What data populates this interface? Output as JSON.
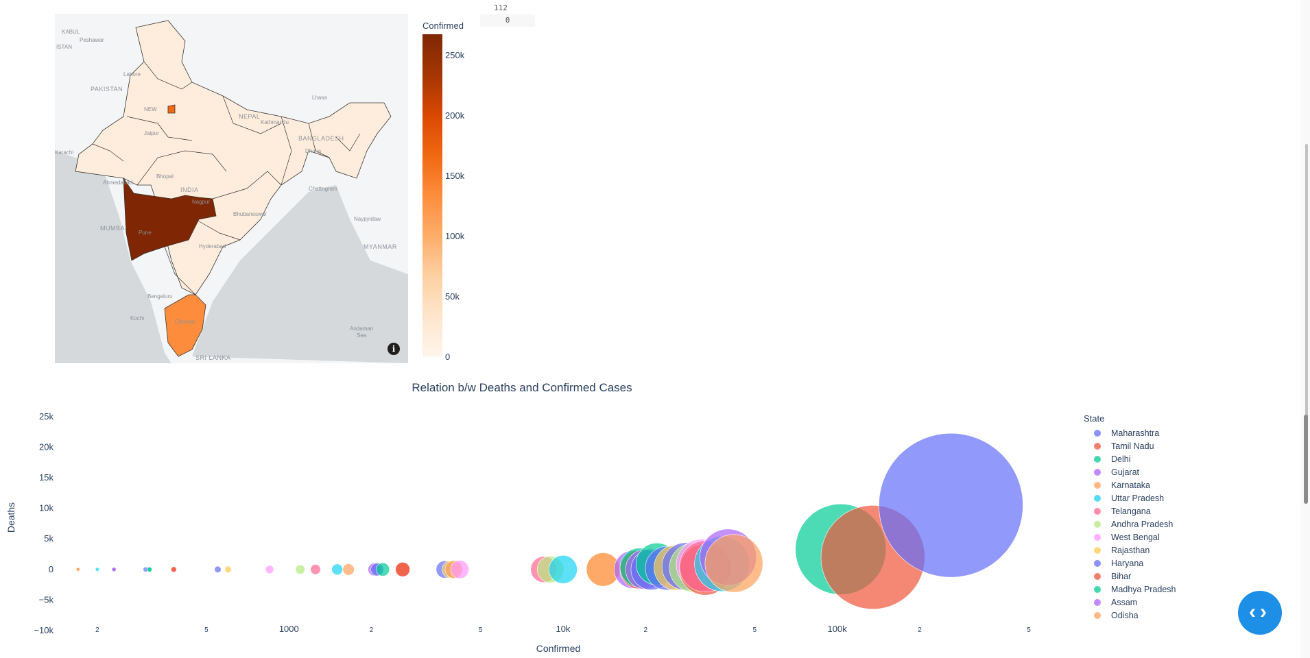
{
  "slider": {
    "top_value": "112",
    "box_value": "0"
  },
  "map": {
    "labels": [
      {
        "text": "KABUL"
      },
      {
        "text": "Peshawar"
      },
      {
        "text": "ISTAN"
      },
      {
        "text": "PAKISTAN"
      },
      {
        "text": "Lahore"
      },
      {
        "text": "NEW"
      },
      {
        "text": "Jaipur"
      },
      {
        "text": "NEPAL"
      },
      {
        "text": "Lhasa"
      },
      {
        "text": "Kathmandu"
      },
      {
        "text": "Ahmedabad"
      },
      {
        "text": "Bhopal"
      },
      {
        "text": "INDIA"
      },
      {
        "text": "Nagpur"
      },
      {
        "text": "MUMBAI"
      },
      {
        "text": "Pune"
      },
      {
        "text": "BANGLADESH"
      },
      {
        "text": "Dhaka"
      },
      {
        "text": "Chattogram"
      },
      {
        "text": "Bhubaneswar"
      },
      {
        "text": "Naypyidaw"
      },
      {
        "text": "MYANMAR"
      },
      {
        "text": "Bengaluru"
      },
      {
        "text": "Kochi"
      },
      {
        "text": "Chennai"
      },
      {
        "text": "Andaman"
      },
      {
        "text": "Sea"
      },
      {
        "text": "SRI LANKA"
      },
      {
        "text": "Hyderabad"
      },
      {
        "text": "Karachi"
      }
    ],
    "info_icon": "i",
    "colorbar": {
      "title": "Confirmed",
      "ticks": [
        "250k",
        "200k",
        "150k",
        "100k",
        "50k",
        "0"
      ],
      "colorscale": [
        "#fff5eb",
        "#fee6ce",
        "#fdd0a2",
        "#fdae6b",
        "#fd8d3c",
        "#f16913",
        "#d94801",
        "#a63603",
        "#7f2704"
      ]
    },
    "state_colors": {
      "maharashtra": "#7f2704",
      "tamil_nadu": "#fd8d3c",
      "delhi": "#f16913",
      "other": "#feeddc"
    }
  },
  "chart": {
    "title": "Relation b/w Deaths and Confirmed Cases",
    "xlabel": "Confirmed",
    "ylabel": "Deaths",
    "x_ticks": [
      "2",
      "5",
      "1000",
      "2",
      "5",
      "10k",
      "2",
      "5",
      "100k",
      "2",
      "5"
    ],
    "y_ticks": [
      "25k",
      "20k",
      "15k",
      "10k",
      "5k",
      "0",
      "−5k",
      "−10k"
    ],
    "legend_title": "State"
  },
  "chart_data": {
    "type": "scatter",
    "title": "Relation b/w Deaths and Confirmed Cases",
    "xlabel": "Confirmed",
    "ylabel": "Deaths",
    "x_scale": "log",
    "xlim": [
      140,
      500000
    ],
    "ylim": [
      -10000,
      27000
    ],
    "size_encodes": "Confirmed",
    "series": [
      {
        "name": "Maharashtra",
        "color": "#636efa",
        "points": [
          {
            "x": 260000,
            "y": 10500
          },
          {
            "x": 300,
            "y": 0
          },
          {
            "x": 3700,
            "y": 0
          },
          {
            "x": 21000,
            "y": 0
          },
          {
            "x": 28000,
            "y": 500
          }
        ]
      },
      {
        "name": "Tamil Nadu",
        "color": "#ef553b",
        "points": [
          {
            "x": 135000,
            "y": 2000
          },
          {
            "x": 380,
            "y": 0
          },
          {
            "x": 2600,
            "y": 0
          },
          {
            "x": 33000,
            "y": 0
          }
        ]
      },
      {
        "name": "Delhi",
        "color": "#00cc96",
        "points": [
          {
            "x": 103000,
            "y": 3300
          },
          {
            "x": 310,
            "y": 0
          },
          {
            "x": 2200,
            "y": 0
          },
          {
            "x": 22000,
            "y": 900
          }
        ]
      },
      {
        "name": "Gujarat",
        "color": "#ab63fa",
        "points": [
          {
            "x": 230,
            "y": 0
          },
          {
            "x": 2050,
            "y": 0
          },
          {
            "x": 20000,
            "y": 0
          },
          {
            "x": 40000,
            "y": 2000
          }
        ]
      },
      {
        "name": "Karnataka",
        "color": "#ffa15a",
        "points": [
          {
            "x": 170,
            "y": 0
          },
          {
            "x": 1650,
            "y": 0
          },
          {
            "x": 4000,
            "y": 0
          },
          {
            "x": 14000,
            "y": 0
          },
          {
            "x": 42000,
            "y": 1000
          }
        ]
      },
      {
        "name": "Uttar Pradesh",
        "color": "#19d3f3",
        "points": [
          {
            "x": 200,
            "y": 0
          },
          {
            "x": 1500,
            "y": 0
          },
          {
            "x": 10000,
            "y": 0
          },
          {
            "x": 38000,
            "y": 900
          }
        ]
      },
      {
        "name": "Telangana",
        "color": "#ff6692",
        "points": [
          {
            "x": 1250,
            "y": 0
          },
          {
            "x": 8500,
            "y": 0
          },
          {
            "x": 33000,
            "y": 500
          }
        ]
      },
      {
        "name": "Andhra Pradesh",
        "color": "#b6e880",
        "points": [
          {
            "x": 1100,
            "y": 0
          },
          {
            "x": 9000,
            "y": 0
          },
          {
            "x": 30000,
            "y": 300
          }
        ]
      },
      {
        "name": "West Bengal",
        "color": "#ff97ff",
        "points": [
          {
            "x": 850,
            "y": 0
          },
          {
            "x": 4200,
            "y": 0
          },
          {
            "x": 32000,
            "y": 800
          }
        ]
      },
      {
        "name": "Rajasthan",
        "color": "#fecb52",
        "points": [
          {
            "x": 600,
            "y": 0
          },
          {
            "x": 3900,
            "y": 0
          },
          {
            "x": 26000,
            "y": 300
          }
        ]
      },
      {
        "name": "Haryana",
        "color": "#636efa",
        "points": [
          {
            "x": 550,
            "y": 0
          },
          {
            "x": 2100,
            "y": 0
          },
          {
            "x": 24000,
            "y": 200
          }
        ]
      },
      {
        "name": "Bihar",
        "color": "#ef553b",
        "points": [
          {
            "x": 380,
            "y": 0
          },
          {
            "x": 2600,
            "y": 0
          },
          {
            "x": 19000,
            "y": 0
          }
        ]
      },
      {
        "name": "Madhya Pradesh",
        "color": "#00cc96",
        "points": [
          {
            "x": 310,
            "y": 0
          },
          {
            "x": 19000,
            "y": 300
          }
        ]
      },
      {
        "name": "Assam",
        "color": "#ab63fa",
        "points": [
          {
            "x": 230,
            "y": 0
          },
          {
            "x": 18000,
            "y": 0
          }
        ]
      },
      {
        "name": "Odisha",
        "color": "#ffa15a",
        "points": [
          {
            "x": 170,
            "y": 0
          },
          {
            "x": 14000,
            "y": 0
          }
        ]
      }
    ]
  }
}
